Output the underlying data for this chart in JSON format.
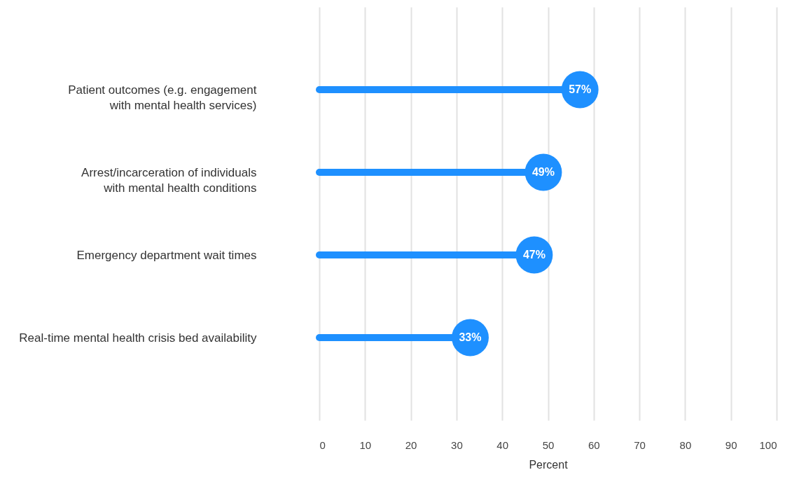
{
  "chart_data": {
    "type": "lollipop",
    "orientation": "horizontal",
    "categories": [
      "Patient outcomes (e.g. engagement\nwith mental health services)",
      "Arrest/incarceration of individuals\nwith mental health conditions",
      "Emergency department wait times",
      "Real-time mental health crisis bed availability"
    ],
    "values": [
      57,
      49,
      47,
      33
    ],
    "value_labels": [
      "57%",
      "49%",
      "47%",
      "33%"
    ],
    "color": "#1e90ff",
    "marker": "circle",
    "xlabel": "Percent",
    "xlim": [
      0,
      100
    ],
    "xticks": [
      0,
      10,
      20,
      30,
      40,
      50,
      60,
      70,
      80,
      90,
      100
    ],
    "grid": "x"
  }
}
